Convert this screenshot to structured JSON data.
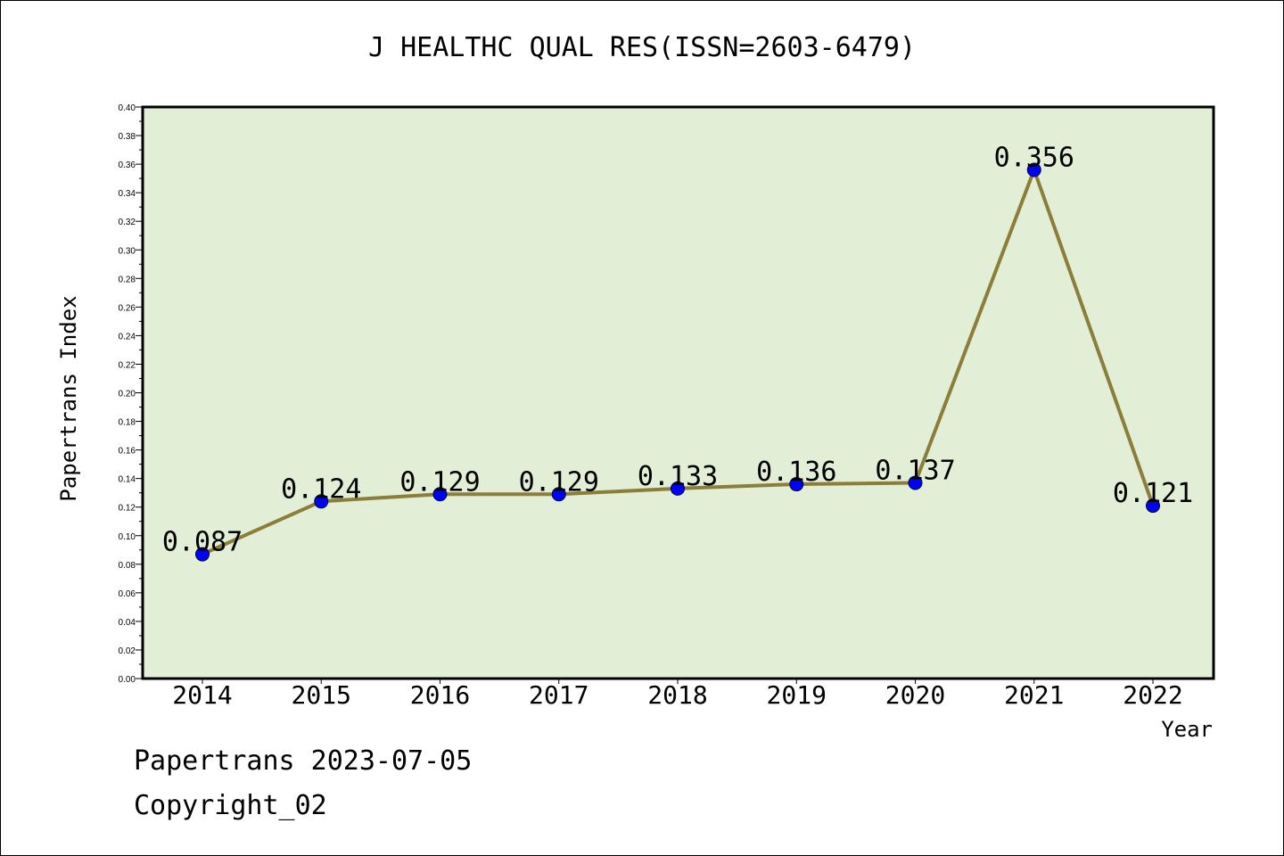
{
  "chart_data": {
    "type": "line",
    "title": "J HEALTHC QUAL RES(ISSN=2603-6479)",
    "xlabel": "Year",
    "ylabel": "Papertrans Index",
    "categories": [
      "2014",
      "2015",
      "2016",
      "2017",
      "2018",
      "2019",
      "2020",
      "2021",
      "2022"
    ],
    "values": [
      0.087,
      0.124,
      0.129,
      0.129,
      0.133,
      0.136,
      0.137,
      0.356,
      0.121
    ],
    "data_labels": [
      "0.087",
      "0.124",
      "0.129",
      "0.129",
      "0.133",
      "0.136",
      "0.137",
      "0.356",
      "0.121"
    ],
    "ylim": [
      0,
      0.4
    ],
    "yticks": [
      "0.00",
      "0.02",
      "0.04",
      "0.06",
      "0.08",
      "0.10",
      "0.12",
      "0.14",
      "0.16",
      "0.18",
      "0.20",
      "0.22",
      "0.24",
      "0.26",
      "0.28",
      "0.30",
      "0.32",
      "0.34",
      "0.36",
      "0.38",
      "0.40"
    ],
    "grid": false,
    "legend": "none",
    "colors": {
      "plot_background": "#e2efd6",
      "line": "#8b7d3a",
      "marker": "#0000ff"
    }
  },
  "footer": {
    "line1": "Papertrans 2023-07-05",
    "line2": "Copyright_02"
  }
}
